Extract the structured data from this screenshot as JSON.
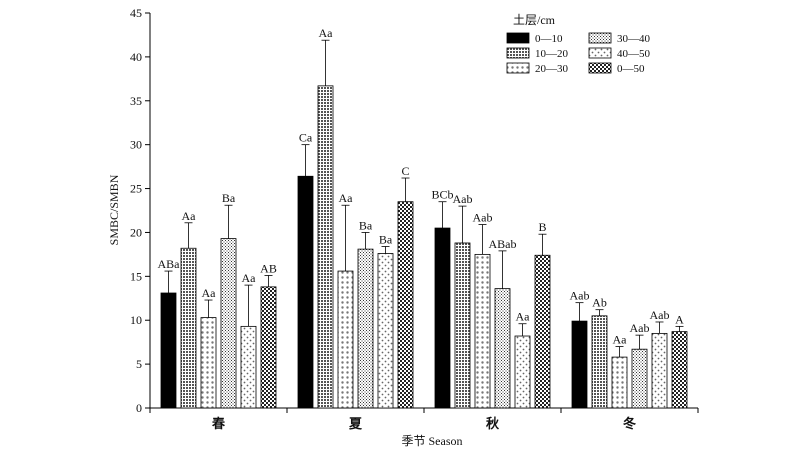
{
  "chart_data": {
    "type": "bar",
    "ylabel": "SMBC/SMBN",
    "xlabel": "季节 Season",
    "ylim": [
      0,
      45
    ],
    "yticks": [
      0,
      5,
      10,
      15,
      20,
      25,
      30,
      35,
      40,
      45
    ],
    "categories": [
      "春",
      "夏",
      "秋",
      "冬"
    ],
    "legend": {
      "title": "土层/cm",
      "placement": "top-right"
    },
    "series": [
      {
        "name": "0—10",
        "pattern": "solid-black",
        "values": [
          13.1,
          26.4,
          20.5,
          9.9
        ],
        "errors": [
          2.5,
          3.6,
          3.0,
          2.1
        ],
        "labels": [
          "ABa",
          "Ca",
          "BCb",
          "Aab"
        ]
      },
      {
        "name": "10—20",
        "pattern": "dense-grid",
        "values": [
          18.2,
          36.7,
          18.8,
          10.5
        ],
        "errors": [
          2.9,
          5.2,
          4.2,
          0.7
        ],
        "labels": [
          "Aa",
          "Aa",
          "Aab",
          "Ab"
        ]
      },
      {
        "name": "20—30",
        "pattern": "open-dots",
        "values": [
          10.3,
          15.6,
          17.5,
          5.8
        ],
        "errors": [
          2.0,
          7.5,
          3.4,
          1.2
        ],
        "labels": [
          "Aa",
          "Aa",
          "Aab",
          "Aa"
        ]
      },
      {
        "name": "30—40",
        "pattern": "fine-dots",
        "values": [
          19.3,
          18.1,
          13.6,
          6.7
        ],
        "errors": [
          3.8,
          1.9,
          4.3,
          1.6
        ],
        "labels": [
          "Ba",
          "Ba",
          "ABab",
          "Aab"
        ]
      },
      {
        "name": "40—50",
        "pattern": "sparse-dots",
        "values": [
          9.3,
          17.6,
          8.2,
          8.5
        ],
        "errors": [
          4.7,
          0.8,
          1.4,
          1.3
        ],
        "labels": [
          "Aa",
          "Ba",
          "Aa",
          "Aab"
        ]
      },
      {
        "name": "0—50",
        "pattern": "checker",
        "values": [
          13.8,
          23.5,
          17.4,
          8.7
        ],
        "errors": [
          1.3,
          2.7,
          2.4,
          0.6
        ],
        "labels": [
          "AB",
          "C",
          "B",
          "A"
        ]
      }
    ]
  }
}
